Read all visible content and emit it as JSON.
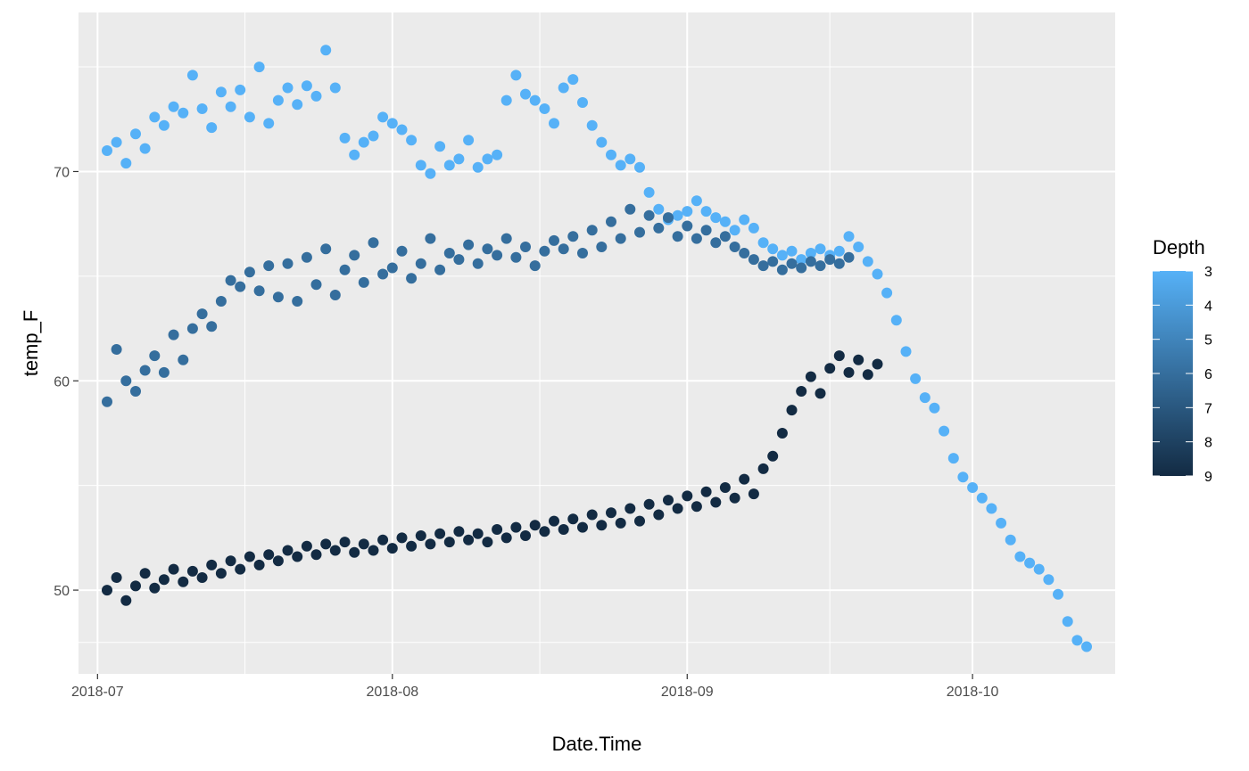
{
  "chart_data": {
    "type": "scatter",
    "title": "",
    "xlabel": "Date.Time",
    "ylabel": "temp_F",
    "x_ticks": [
      "2018-07",
      "2018-08",
      "2018-09",
      "2018-10"
    ],
    "y_ticks": [
      50,
      60,
      70
    ],
    "xlim": [
      "2018-06-29",
      "2018-10-16"
    ],
    "ylim": [
      46,
      77.6
    ],
    "grid": true,
    "legend": {
      "title": "Depth",
      "position": "right",
      "type": "colorbar",
      "values": [
        3,
        4,
        5,
        6,
        7,
        8,
        9
      ],
      "color_low": "#56B1F7",
      "color_high": "#132B43"
    },
    "series": [
      {
        "depth": 3,
        "points": [
          [
            "2018-07-02",
            71.0
          ],
          [
            "2018-07-03",
            71.4
          ],
          [
            "2018-07-04",
            70.4
          ],
          [
            "2018-07-05",
            71.8
          ],
          [
            "2018-07-06",
            71.1
          ],
          [
            "2018-07-07",
            72.6
          ],
          [
            "2018-07-08",
            72.2
          ],
          [
            "2018-07-09",
            73.1
          ],
          [
            "2018-07-10",
            72.8
          ],
          [
            "2018-07-11",
            74.6
          ],
          [
            "2018-07-12",
            73.0
          ],
          [
            "2018-07-13",
            72.1
          ],
          [
            "2018-07-14",
            73.8
          ],
          [
            "2018-07-15",
            73.1
          ],
          [
            "2018-07-16",
            73.9
          ],
          [
            "2018-07-17",
            72.6
          ],
          [
            "2018-07-18",
            75.0
          ],
          [
            "2018-07-19",
            72.3
          ],
          [
            "2018-07-20",
            73.4
          ],
          [
            "2018-07-21",
            74.0
          ],
          [
            "2018-07-22",
            73.2
          ],
          [
            "2018-07-23",
            74.1
          ],
          [
            "2018-07-24",
            73.6
          ],
          [
            "2018-07-25",
            75.8
          ],
          [
            "2018-07-26",
            74.0
          ],
          [
            "2018-07-27",
            71.6
          ],
          [
            "2018-07-28",
            70.8
          ],
          [
            "2018-07-29",
            71.4
          ],
          [
            "2018-07-30",
            71.7
          ],
          [
            "2018-07-31",
            72.6
          ],
          [
            "2018-08-01",
            72.3
          ],
          [
            "2018-08-02",
            72.0
          ],
          [
            "2018-08-03",
            71.5
          ],
          [
            "2018-08-04",
            70.3
          ],
          [
            "2018-08-05",
            69.9
          ],
          [
            "2018-08-06",
            71.2
          ],
          [
            "2018-08-07",
            70.3
          ],
          [
            "2018-08-08",
            70.6
          ],
          [
            "2018-08-09",
            71.5
          ],
          [
            "2018-08-10",
            70.2
          ],
          [
            "2018-08-11",
            70.6
          ],
          [
            "2018-08-12",
            70.8
          ],
          [
            "2018-08-13",
            73.4
          ],
          [
            "2018-08-14",
            74.6
          ],
          [
            "2018-08-15",
            73.7
          ],
          [
            "2018-08-16",
            73.4
          ],
          [
            "2018-08-17",
            73.0
          ],
          [
            "2018-08-18",
            72.3
          ],
          [
            "2018-08-19",
            74.0
          ],
          [
            "2018-08-20",
            74.4
          ],
          [
            "2018-08-21",
            73.3
          ],
          [
            "2018-08-22",
            72.2
          ],
          [
            "2018-08-23",
            71.4
          ],
          [
            "2018-08-24",
            70.8
          ],
          [
            "2018-08-25",
            70.3
          ],
          [
            "2018-08-26",
            70.6
          ],
          [
            "2018-08-27",
            70.2
          ],
          [
            "2018-08-28",
            69.0
          ],
          [
            "2018-08-29",
            68.2
          ],
          [
            "2018-08-30",
            67.7
          ],
          [
            "2018-08-31",
            67.9
          ],
          [
            "2018-09-01",
            68.1
          ],
          [
            "2018-09-02",
            68.6
          ],
          [
            "2018-09-03",
            68.1
          ],
          [
            "2018-09-04",
            67.8
          ],
          [
            "2018-09-05",
            67.6
          ],
          [
            "2018-09-06",
            67.2
          ],
          [
            "2018-09-07",
            67.7
          ],
          [
            "2018-09-08",
            67.3
          ],
          [
            "2018-09-09",
            66.6
          ],
          [
            "2018-09-10",
            66.3
          ],
          [
            "2018-09-11",
            66.0
          ],
          [
            "2018-09-12",
            66.2
          ],
          [
            "2018-09-13",
            65.8
          ],
          [
            "2018-09-14",
            66.1
          ],
          [
            "2018-09-15",
            66.3
          ],
          [
            "2018-09-16",
            66.0
          ],
          [
            "2018-09-17",
            66.2
          ],
          [
            "2018-09-18",
            66.9
          ],
          [
            "2018-09-19",
            66.4
          ],
          [
            "2018-09-20",
            65.7
          ],
          [
            "2018-09-21",
            65.1
          ],
          [
            "2018-09-22",
            64.2
          ],
          [
            "2018-09-23",
            62.9
          ],
          [
            "2018-09-24",
            61.4
          ],
          [
            "2018-09-25",
            60.1
          ],
          [
            "2018-09-26",
            59.2
          ],
          [
            "2018-09-27",
            58.7
          ],
          [
            "2018-09-28",
            57.6
          ],
          [
            "2018-09-29",
            56.3
          ],
          [
            "2018-09-30",
            55.4
          ],
          [
            "2018-10-01",
            54.9
          ],
          [
            "2018-10-02",
            54.4
          ],
          [
            "2018-10-03",
            53.9
          ],
          [
            "2018-10-04",
            53.2
          ],
          [
            "2018-10-05",
            52.4
          ],
          [
            "2018-10-06",
            51.6
          ],
          [
            "2018-10-07",
            51.3
          ],
          [
            "2018-10-08",
            51.0
          ],
          [
            "2018-10-09",
            50.5
          ],
          [
            "2018-10-10",
            49.8
          ],
          [
            "2018-10-11",
            48.5
          ],
          [
            "2018-10-12",
            47.6
          ],
          [
            "2018-10-13",
            47.3
          ]
        ]
      },
      {
        "depth": 6,
        "points": [
          [
            "2018-07-02",
            59.0
          ],
          [
            "2018-07-03",
            61.5
          ],
          [
            "2018-07-04",
            60.0
          ],
          [
            "2018-07-05",
            59.5
          ],
          [
            "2018-07-06",
            60.5
          ],
          [
            "2018-07-07",
            61.2
          ],
          [
            "2018-07-08",
            60.4
          ],
          [
            "2018-07-09",
            62.2
          ],
          [
            "2018-07-10",
            61.0
          ],
          [
            "2018-07-11",
            62.5
          ],
          [
            "2018-07-12",
            63.2
          ],
          [
            "2018-07-13",
            62.6
          ],
          [
            "2018-07-14",
            63.8
          ],
          [
            "2018-07-15",
            64.8
          ],
          [
            "2018-07-16",
            64.5
          ],
          [
            "2018-07-17",
            65.2
          ],
          [
            "2018-07-18",
            64.3
          ],
          [
            "2018-07-19",
            65.5
          ],
          [
            "2018-07-20",
            64.0
          ],
          [
            "2018-07-21",
            65.6
          ],
          [
            "2018-07-22",
            63.8
          ],
          [
            "2018-07-23",
            65.9
          ],
          [
            "2018-07-24",
            64.6
          ],
          [
            "2018-07-25",
            66.3
          ],
          [
            "2018-07-26",
            64.1
          ],
          [
            "2018-07-27",
            65.3
          ],
          [
            "2018-07-28",
            66.0
          ],
          [
            "2018-07-29",
            64.7
          ],
          [
            "2018-07-30",
            66.6
          ],
          [
            "2018-07-31",
            65.1
          ],
          [
            "2018-08-01",
            65.4
          ],
          [
            "2018-08-02",
            66.2
          ],
          [
            "2018-08-03",
            64.9
          ],
          [
            "2018-08-04",
            65.6
          ],
          [
            "2018-08-05",
            66.8
          ],
          [
            "2018-08-06",
            65.3
          ],
          [
            "2018-08-07",
            66.1
          ],
          [
            "2018-08-08",
            65.8
          ],
          [
            "2018-08-09",
            66.5
          ],
          [
            "2018-08-10",
            65.6
          ],
          [
            "2018-08-11",
            66.3
          ],
          [
            "2018-08-12",
            66.0
          ],
          [
            "2018-08-13",
            66.8
          ],
          [
            "2018-08-14",
            65.9
          ],
          [
            "2018-08-15",
            66.4
          ],
          [
            "2018-08-16",
            65.5
          ],
          [
            "2018-08-17",
            66.2
          ],
          [
            "2018-08-18",
            66.7
          ],
          [
            "2018-08-19",
            66.3
          ],
          [
            "2018-08-20",
            66.9
          ],
          [
            "2018-08-21",
            66.1
          ],
          [
            "2018-08-22",
            67.2
          ],
          [
            "2018-08-23",
            66.4
          ],
          [
            "2018-08-24",
            67.6
          ],
          [
            "2018-08-25",
            66.8
          ],
          [
            "2018-08-26",
            68.2
          ],
          [
            "2018-08-27",
            67.1
          ],
          [
            "2018-08-28",
            67.9
          ],
          [
            "2018-08-29",
            67.3
          ],
          [
            "2018-08-30",
            67.8
          ],
          [
            "2018-08-31",
            66.9
          ],
          [
            "2018-09-01",
            67.4
          ],
          [
            "2018-09-02",
            66.8
          ],
          [
            "2018-09-03",
            67.2
          ],
          [
            "2018-09-04",
            66.6
          ],
          [
            "2018-09-05",
            66.9
          ],
          [
            "2018-09-06",
            66.4
          ],
          [
            "2018-09-07",
            66.1
          ],
          [
            "2018-09-08",
            65.8
          ],
          [
            "2018-09-09",
            65.5
          ],
          [
            "2018-09-10",
            65.7
          ],
          [
            "2018-09-11",
            65.3
          ],
          [
            "2018-09-12",
            65.6
          ],
          [
            "2018-09-13",
            65.4
          ],
          [
            "2018-09-14",
            65.7
          ],
          [
            "2018-09-15",
            65.5
          ],
          [
            "2018-09-16",
            65.8
          ],
          [
            "2018-09-17",
            65.6
          ],
          [
            "2018-09-18",
            65.9
          ]
        ]
      },
      {
        "depth": 9,
        "points": [
          [
            "2018-07-02",
            50.0
          ],
          [
            "2018-07-03",
            50.6
          ],
          [
            "2018-07-04",
            49.5
          ],
          [
            "2018-07-05",
            50.2
          ],
          [
            "2018-07-06",
            50.8
          ],
          [
            "2018-07-07",
            50.1
          ],
          [
            "2018-07-08",
            50.5
          ],
          [
            "2018-07-09",
            51.0
          ],
          [
            "2018-07-10",
            50.4
          ],
          [
            "2018-07-11",
            50.9
          ],
          [
            "2018-07-12",
            50.6
          ],
          [
            "2018-07-13",
            51.2
          ],
          [
            "2018-07-14",
            50.8
          ],
          [
            "2018-07-15",
            51.4
          ],
          [
            "2018-07-16",
            51.0
          ],
          [
            "2018-07-17",
            51.6
          ],
          [
            "2018-07-18",
            51.2
          ],
          [
            "2018-07-19",
            51.7
          ],
          [
            "2018-07-20",
            51.4
          ],
          [
            "2018-07-21",
            51.9
          ],
          [
            "2018-07-22",
            51.6
          ],
          [
            "2018-07-23",
            52.1
          ],
          [
            "2018-07-24",
            51.7
          ],
          [
            "2018-07-25",
            52.2
          ],
          [
            "2018-07-26",
            51.9
          ],
          [
            "2018-07-27",
            52.3
          ],
          [
            "2018-07-28",
            51.8
          ],
          [
            "2018-07-29",
            52.2
          ],
          [
            "2018-07-30",
            51.9
          ],
          [
            "2018-07-31",
            52.4
          ],
          [
            "2018-08-01",
            52.0
          ],
          [
            "2018-08-02",
            52.5
          ],
          [
            "2018-08-03",
            52.1
          ],
          [
            "2018-08-04",
            52.6
          ],
          [
            "2018-08-05",
            52.2
          ],
          [
            "2018-08-06",
            52.7
          ],
          [
            "2018-08-07",
            52.3
          ],
          [
            "2018-08-08",
            52.8
          ],
          [
            "2018-08-09",
            52.4
          ],
          [
            "2018-08-10",
            52.7
          ],
          [
            "2018-08-11",
            52.3
          ],
          [
            "2018-08-12",
            52.9
          ],
          [
            "2018-08-13",
            52.5
          ],
          [
            "2018-08-14",
            53.0
          ],
          [
            "2018-08-15",
            52.6
          ],
          [
            "2018-08-16",
            53.1
          ],
          [
            "2018-08-17",
            52.8
          ],
          [
            "2018-08-18",
            53.3
          ],
          [
            "2018-08-19",
            52.9
          ],
          [
            "2018-08-20",
            53.4
          ],
          [
            "2018-08-21",
            53.0
          ],
          [
            "2018-08-22",
            53.6
          ],
          [
            "2018-08-23",
            53.1
          ],
          [
            "2018-08-24",
            53.7
          ],
          [
            "2018-08-25",
            53.2
          ],
          [
            "2018-08-26",
            53.9
          ],
          [
            "2018-08-27",
            53.3
          ],
          [
            "2018-08-28",
            54.1
          ],
          [
            "2018-08-29",
            53.6
          ],
          [
            "2018-08-30",
            54.3
          ],
          [
            "2018-08-31",
            53.9
          ],
          [
            "2018-09-01",
            54.5
          ],
          [
            "2018-09-02",
            54.0
          ],
          [
            "2018-09-03",
            54.7
          ],
          [
            "2018-09-04",
            54.2
          ],
          [
            "2018-09-05",
            54.9
          ],
          [
            "2018-09-06",
            54.4
          ],
          [
            "2018-09-07",
            55.3
          ],
          [
            "2018-09-08",
            54.6
          ],
          [
            "2018-09-09",
            55.8
          ],
          [
            "2018-09-10",
            56.4
          ],
          [
            "2018-09-11",
            57.5
          ],
          [
            "2018-09-12",
            58.6
          ],
          [
            "2018-09-13",
            59.5
          ],
          [
            "2018-09-14",
            60.2
          ],
          [
            "2018-09-15",
            59.4
          ],
          [
            "2018-09-16",
            60.6
          ],
          [
            "2018-09-17",
            61.2
          ],
          [
            "2018-09-18",
            60.4
          ],
          [
            "2018-09-19",
            61.0
          ],
          [
            "2018-09-20",
            60.3
          ],
          [
            "2018-09-21",
            60.8
          ]
        ]
      }
    ]
  }
}
